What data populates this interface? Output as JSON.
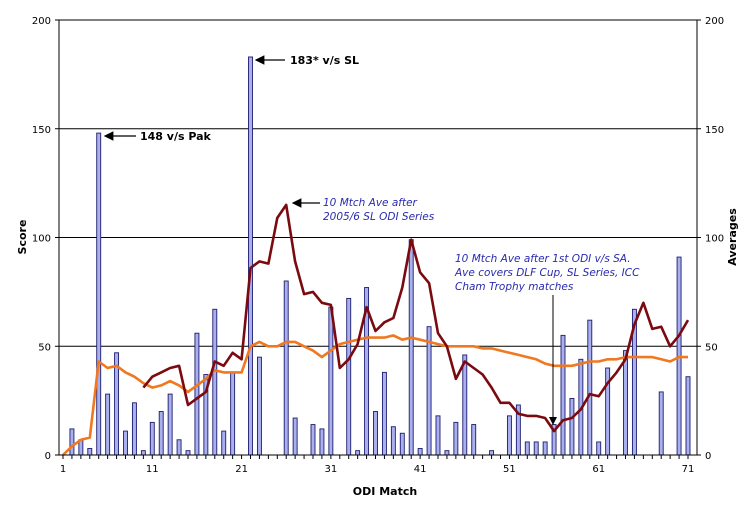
{
  "chart_data": {
    "type": "bar",
    "title": "",
    "xlabel": "ODI Match",
    "ylabel": "Score",
    "y2label": "Averages",
    "xlim": [
      1,
      71
    ],
    "ylim": [
      0,
      200
    ],
    "y2lim": [
      0,
      200
    ],
    "x_ticks": [
      "1",
      "11",
      "21",
      "31",
      "41",
      "51",
      "61",
      "71"
    ],
    "y_ticks": [
      "0",
      "50",
      "100",
      "150",
      "200"
    ],
    "y2_ticks": [
      "0",
      "50",
      "100",
      "150",
      "200"
    ],
    "grid": "horizontal",
    "colors": {
      "bars": "#aab0ee",
      "bar_border": "#1c1c6e",
      "cumulative_average": "#f07820",
      "ten_match_average": "#7a0a10",
      "annotation_blue": "#2a2ab0"
    },
    "x": [
      1,
      2,
      3,
      4,
      5,
      6,
      7,
      8,
      9,
      10,
      11,
      12,
      13,
      14,
      15,
      16,
      17,
      18,
      19,
      20,
      21,
      22,
      23,
      24,
      25,
      26,
      27,
      28,
      29,
      30,
      31,
      32,
      33,
      34,
      35,
      36,
      37,
      38,
      39,
      40,
      41,
      42,
      43,
      44,
      45,
      46,
      47,
      48,
      49,
      50,
      51,
      52,
      53,
      54,
      55,
      56,
      57,
      58,
      59,
      60,
      61,
      62,
      63,
      64,
      65,
      66,
      67,
      68,
      69,
      70,
      71
    ],
    "series": [
      {
        "type": "bar",
        "axis": "left",
        "values": [
          0,
          12,
          7,
          3,
          148,
          28,
          47,
          11,
          24,
          2,
          15,
          20,
          28,
          7,
          2,
          56,
          37,
          67,
          11,
          38,
          0,
          183,
          45,
          0,
          0,
          80,
          17,
          0,
          14,
          12,
          68,
          0,
          72,
          2,
          77,
          20,
          38,
          13,
          10,
          99,
          3,
          59,
          18,
          2,
          15,
          46,
          14,
          0,
          2,
          0,
          18,
          23,
          6,
          6,
          6,
          14,
          55,
          26,
          44,
          62,
          6,
          40,
          0,
          48,
          67,
          0,
          0,
          29,
          0,
          91,
          36
        ]
      },
      {
        "type": "line",
        "axis": "right",
        "role": "cumulative average",
        "values": [
          0,
          4,
          7,
          8,
          43,
          40,
          41,
          38,
          36,
          33,
          31,
          32,
          34,
          32,
          29,
          32,
          35,
          39,
          38,
          38,
          38,
          50,
          52,
          50,
          50,
          52,
          52,
          50,
          48,
          45,
          48,
          51,
          52,
          53,
          54,
          54,
          54,
          55,
          53,
          54,
          53,
          52,
          51,
          50,
          50,
          50,
          50,
          49,
          49,
          48,
          47,
          46,
          45,
          44,
          42,
          41,
          41,
          41,
          42,
          43,
          43,
          44,
          44,
          45,
          45,
          45,
          45,
          44,
          43,
          45,
          45
        ]
      },
      {
        "type": "line",
        "axis": "right",
        "role": "10 match average",
        "values": [
          null,
          null,
          null,
          null,
          null,
          null,
          null,
          null,
          null,
          31,
          36,
          38,
          40,
          41,
          23,
          26,
          29,
          43,
          41,
          47,
          44,
          86,
          89,
          88,
          109,
          115,
          89,
          74,
          75,
          70,
          69,
          40,
          44,
          51,
          68,
          57,
          61,
          63,
          77,
          99,
          84,
          79,
          56,
          50,
          35,
          43,
          40,
          37,
          31,
          24,
          24,
          19,
          18,
          18,
          17,
          11,
          16,
          17,
          21,
          28,
          27,
          33,
          38,
          44,
          60,
          70,
          58,
          59,
          50,
          55,
          62
        ]
      }
    ],
    "annotations": {
      "a148": "148 v/s Pak",
      "a183": "183* v/s SL",
      "sl_line1": "10 Mtch Ave after",
      "sl_line2": "2005/6 SL ODI Series",
      "sa_line1": "10 Mtch Ave after 1st ODI v/s SA.",
      "sa_line2": "Ave covers DLF Cup, SL Series, ICC",
      "sa_line3": "Cham Trophy matches"
    }
  }
}
